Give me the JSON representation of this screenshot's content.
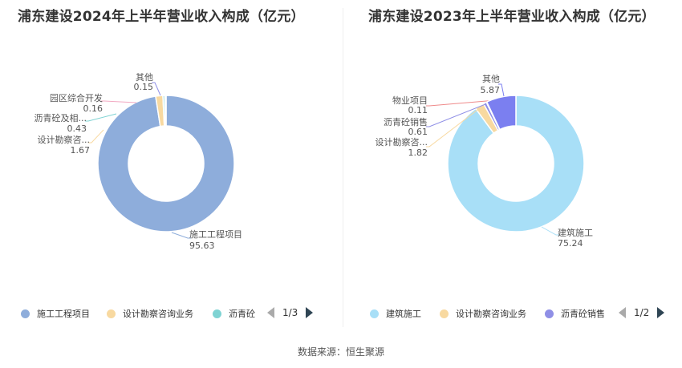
{
  "colors": {
    "blue": "#8eaddb",
    "yellow": "#f8d9a0",
    "teal": "#7fd3d3",
    "pink": "#f2a9c2",
    "purple": "#8f8fe6",
    "light_blue": "#a8dff7",
    "red": "#ef8a8a",
    "grey": "#aab4c2"
  },
  "chart_data": [
    {
      "type": "pie",
      "title": "浦东建设2024年上半年营业收入构成（亿元）",
      "slices": [
        {
          "name": "施工工程项目",
          "value": 95.63,
          "value_label": "95.63",
          "color": "#8eaddb"
        },
        {
          "name": "设计勘察咨...",
          "value": 1.67,
          "value_label": "1.67",
          "color": "#f8d9a0"
        },
        {
          "name": "沥青砼及相...",
          "value": 0.43,
          "value_label": "0.43",
          "color": "#7fd3d3"
        },
        {
          "name": "园区综合开发",
          "value": 0.16,
          "value_label": "0.16",
          "color": "#f2a9c2"
        },
        {
          "name": "其他",
          "value": 0.15,
          "value_label": "0.15",
          "color": "#8f8fe6"
        }
      ],
      "legend": {
        "items": [
          {
            "name": "施工工程项目",
            "color": "#8eaddb"
          },
          {
            "name": "设计勘察咨询业务",
            "color": "#f8d9a0"
          },
          {
            "name": "沥青砼",
            "color": "#7fd3d3"
          }
        ],
        "page": "1/3"
      }
    },
    {
      "type": "pie",
      "title": "浦东建设2023年上半年营业收入构成（亿元）",
      "slices": [
        {
          "name": "建筑施工",
          "value": 75.24,
          "value_label": "75.24",
          "color": "#a8dff7"
        },
        {
          "name": "设计勘察咨...",
          "value": 1.82,
          "value_label": "1.82",
          "color": "#f8d9a0"
        },
        {
          "name": "沥青砼销售",
          "value": 0.61,
          "value_label": "0.61",
          "color": "#8f8fe6"
        },
        {
          "name": "物业项目",
          "value": 0.11,
          "value_label": "0.11",
          "color": "#ef8a8a"
        },
        {
          "name": "其他",
          "value": 5.87,
          "value_label": "5.87",
          "color": "#7b7ff0"
        }
      ],
      "legend": {
        "items": [
          {
            "name": "建筑施工",
            "color": "#a8dff7"
          },
          {
            "name": "设计勘察咨询业务",
            "color": "#f8d9a0"
          },
          {
            "name": "沥青砼销售",
            "color": "#8f8fe6"
          }
        ],
        "page": "1/2"
      }
    }
  ],
  "footer": {
    "source": "数据来源：恒生聚源"
  }
}
